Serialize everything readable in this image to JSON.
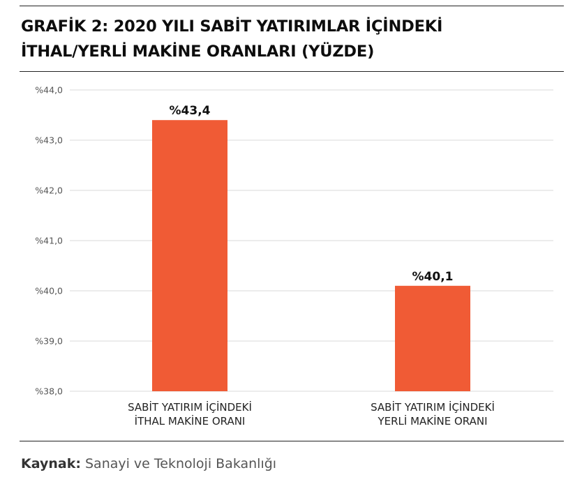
{
  "header": {
    "title_line1": "GRAFİK 2: 2020 YILI SABİT YATIRIMLAR İÇİNDEKİ",
    "title_line2": "İTHAL/YERLİ MAKİNE ORANLARI (YÜZDE)"
  },
  "source": {
    "label": "Kaynak:",
    "text": "Sanayi ve Teknoloji Bakanlığı"
  },
  "colors": {
    "bar": "#f05b35",
    "grid": "#d9d9d9",
    "axis_text": "#555555"
  },
  "chart_data": {
    "type": "bar",
    "categories": [
      [
        "SABİT YATIRIM İÇİNDEKİ",
        "İTHAL MAKİNE ORANI"
      ],
      [
        "SABİT YATIRIM İÇİNDEKİ",
        "YERLİ MAKİNE ORANI"
      ]
    ],
    "values": [
      43.4,
      40.1
    ],
    "data_labels": [
      "%43,4",
      "%40,1"
    ],
    "ylim": [
      38.0,
      44.0
    ],
    "yticks": [
      {
        "value": 44.0,
        "label": "%44,0"
      },
      {
        "value": 43.0,
        "label": "%43,0"
      },
      {
        "value": 42.0,
        "label": "%42,0"
      },
      {
        "value": 41.0,
        "label": "%41,0"
      },
      {
        "value": 40.0,
        "label": "%40,0"
      },
      {
        "value": 39.0,
        "label": "%39,0"
      },
      {
        "value": 38.0,
        "label": "%38,0"
      }
    ],
    "grid": true,
    "legend": "none"
  }
}
